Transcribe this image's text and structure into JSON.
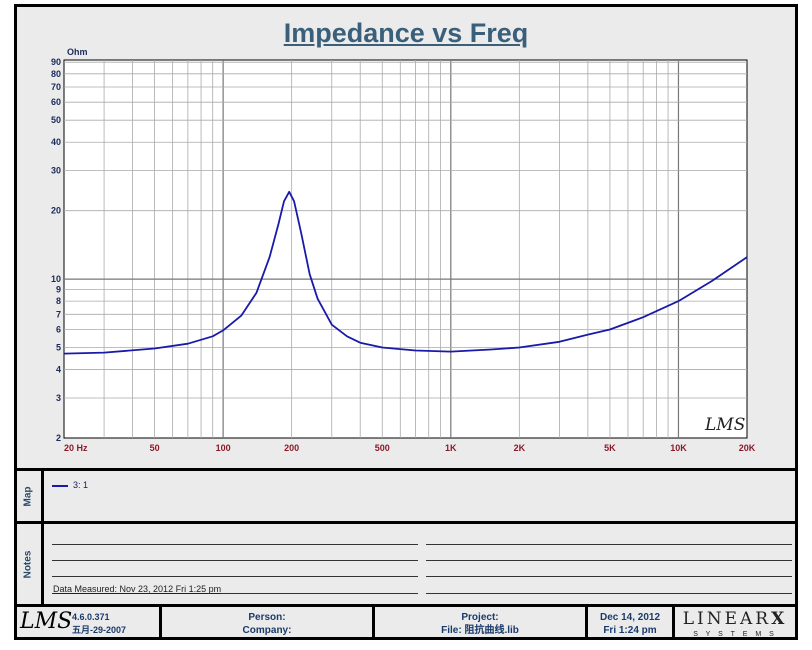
{
  "chart_data": {
    "type": "line",
    "title": "Impedance vs Freq",
    "ylabel": "Ohm",
    "xlabel": "Hz",
    "xscale": "log",
    "yscale": "log",
    "xlim": [
      20,
      20000
    ],
    "ylim": [
      2,
      92
    ],
    "x_ticks": [
      {
        "v": 20,
        "l": "20  Hz"
      },
      {
        "v": 50,
        "l": "50"
      },
      {
        "v": 100,
        "l": "100"
      },
      {
        "v": 200,
        "l": "200"
      },
      {
        "v": 500,
        "l": "500"
      },
      {
        "v": 1000,
        "l": "1K"
      },
      {
        "v": 2000,
        "l": "2K"
      },
      {
        "v": 5000,
        "l": "5K"
      },
      {
        "v": 10000,
        "l": "10K"
      },
      {
        "v": 20000,
        "l": "20K"
      }
    ],
    "y_ticks": [
      2,
      3,
      4,
      5,
      6,
      7,
      8,
      9,
      10,
      20,
      30,
      40,
      50,
      60,
      70,
      80,
      90
    ],
    "grid": true,
    "series": [
      {
        "name": "3: 1",
        "color": "#1a1aa8",
        "x": [
          20,
          30,
          50,
          70,
          90,
          100,
          120,
          140,
          160,
          175,
          185,
          195,
          205,
          220,
          240,
          260,
          300,
          350,
          400,
          500,
          700,
          1000,
          1500,
          2000,
          3000,
          4000,
          5000,
          7000,
          10000,
          14000,
          20000
        ],
        "y": [
          4.7,
          4.75,
          4.95,
          5.2,
          5.6,
          5.95,
          6.9,
          8.7,
          12.5,
          17.5,
          22,
          24.2,
          22,
          16,
          10.5,
          8.2,
          6.3,
          5.6,
          5.25,
          5.0,
          4.85,
          4.8,
          4.9,
          5.0,
          5.3,
          5.7,
          6.0,
          6.8,
          8.0,
          9.8,
          12.5
        ]
      }
    ]
  },
  "logo": "LMS",
  "map": {
    "label": "Map",
    "legend": "3: 1"
  },
  "notes": {
    "label": "Notes",
    "measured": "Data Measured: Nov 23, 2012  Fri  1:25 pm"
  },
  "footer": {
    "version": "4.6.0.371",
    "version_date": "五月-29-2007",
    "person": "Person:",
    "company": "Company:",
    "project": "Project:",
    "file": "File: 阻抗曲线.lib",
    "date": "Dec 14, 2012",
    "time": "Fri  1:24 pm",
    "brand": "LINEAR",
    "brand_x": "X",
    "brand_sub": "S Y S T E M S"
  }
}
